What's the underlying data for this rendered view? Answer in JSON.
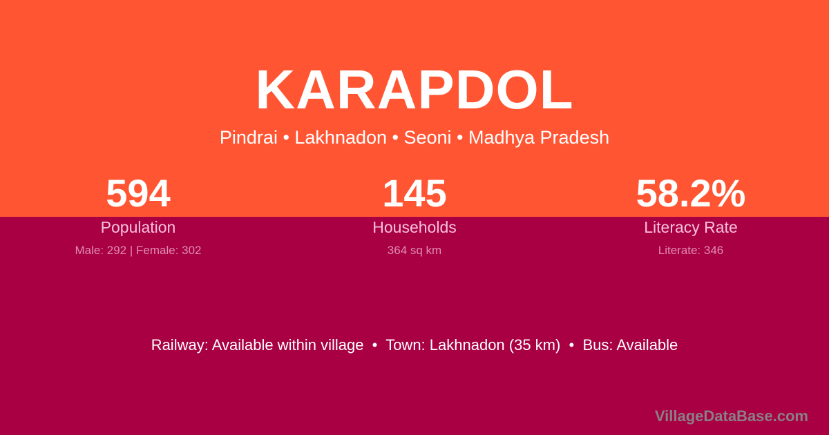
{
  "village": {
    "name": "KARAPDOL",
    "location": "Pindrai • Lakhnadon • Seoni • Madhya Pradesh"
  },
  "stats": [
    {
      "value": "594",
      "label": "Population",
      "detail": "Male: 292 | Female: 302"
    },
    {
      "value": "145",
      "label": "Households",
      "detail": "364 sq km"
    },
    {
      "value": "58.2%",
      "label": "Literacy Rate",
      "detail": "Literate: 346"
    }
  ],
  "info_line": "Railway: Available within village  •  Town: Lakhnadon (35 km)  •  Bus: Available",
  "watermark": "VillageDataBase.com",
  "colors": {
    "top": "#ff5533",
    "bottom": "#a80043"
  }
}
